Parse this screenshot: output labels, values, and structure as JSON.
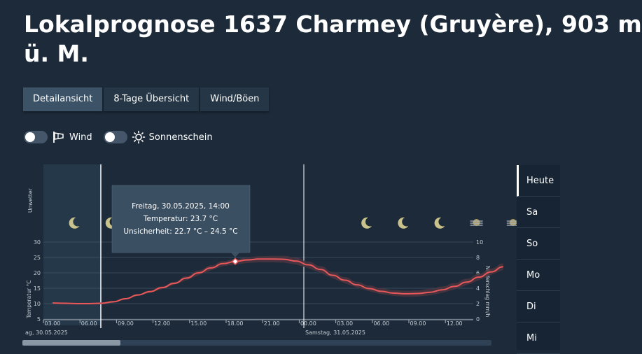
{
  "page": {
    "title_line1": "Lokalprognose 1637 Charmey (Gruyère), 903 m",
    "title_line2": "ü. M."
  },
  "tabs": [
    {
      "label": "Detailansicht",
      "active": true
    },
    {
      "label": "8-Tage Übersicht",
      "active": false
    },
    {
      "label": "Wind/Böen",
      "active": false
    }
  ],
  "toggles": [
    {
      "label": "Wind",
      "icon": "windsock-icon",
      "on": false
    },
    {
      "label": "Sonnenschein",
      "icon": "sun-icon",
      "on": false
    }
  ],
  "chart_data": {
    "type": "line",
    "ylabel": "Temperatur °C",
    "y2label": "Niederschlag mm/h",
    "warning_label": "Unwetter",
    "ylim": [
      5,
      30
    ],
    "y_ticks": [
      5,
      10,
      15,
      20,
      25,
      30
    ],
    "y2lim": [
      0,
      10
    ],
    "y2_ticks": [
      0,
      2,
      4,
      6,
      8,
      10
    ],
    "x_ticks": [
      "03.00",
      "06.00",
      "09.00",
      "12.00",
      "15.00",
      "18.00",
      "21.00",
      "00.00",
      "03.00",
      "06.00",
      "09.00",
      "12.00"
    ],
    "day_labels": [
      "ag, 30.05.2025",
      "Samstag, 31.05.2025"
    ],
    "series": [
      {
        "x_hours": [
          0,
          1,
          2,
          3,
          4,
          5,
          6,
          7,
          8,
          9,
          10,
          11,
          12,
          13,
          14,
          15,
          16,
          17,
          18,
          19,
          20,
          21,
          22,
          23,
          24,
          25,
          26,
          27,
          28,
          29,
          30,
          31,
          32,
          33,
          34,
          35,
          36,
          37
        ],
        "values": [
          10.2,
          10.1,
          10.0,
          10.0,
          10.1,
          10.6,
          11.6,
          12.8,
          13.9,
          15.2,
          16.6,
          18.3,
          20.0,
          21.6,
          23.0,
          23.7,
          24.2,
          24.5,
          24.5,
          24.4,
          23.8,
          22.6,
          21.1,
          19.2,
          17.6,
          16.1,
          14.9,
          14.0,
          13.4,
          13.2,
          13.3,
          13.7,
          14.5,
          15.6,
          17.0,
          18.6,
          20.3,
          22.0
        ],
        "uncertainty_low": [
          9.9,
          9.8,
          9.7,
          9.7,
          9.8,
          10.3,
          11.3,
          12.5,
          13.5,
          14.7,
          16.1,
          17.6,
          19.2,
          20.8,
          22.2,
          22.7,
          23.2,
          23.4,
          23.4,
          23.3,
          22.7,
          21.5,
          20.0,
          18.2,
          16.6,
          15.2,
          14.0,
          13.1,
          12.5,
          12.2,
          12.3,
          12.7,
          13.5,
          14.6,
          16.0,
          17.6,
          19.3,
          21.0
        ],
        "uncertainty_high": [
          10.5,
          10.4,
          10.3,
          10.3,
          10.4,
          10.9,
          11.9,
          13.1,
          14.3,
          15.7,
          17.1,
          19.0,
          20.8,
          22.4,
          23.8,
          24.5,
          25.0,
          25.4,
          25.5,
          25.5,
          24.9,
          23.7,
          22.2,
          20.3,
          18.6,
          17.1,
          15.9,
          15.0,
          14.4,
          14.2,
          14.3,
          14.8,
          15.6,
          16.7,
          18.1,
          19.7,
          21.4,
          23.1
        ]
      }
    ],
    "weather_icons": [
      {
        "hour": 1,
        "icon": "moon-icon"
      },
      {
        "hour": 4,
        "icon": "moon-icon"
      },
      {
        "hour": 7,
        "icon": "sun-icon"
      },
      {
        "hour": 25,
        "icon": "moon-icon"
      },
      {
        "hour": 28,
        "icon": "moon-icon"
      },
      {
        "hour": 31,
        "icon": "moon-icon"
      },
      {
        "hour": 34,
        "icon": "fog-icon"
      },
      {
        "hour": 37,
        "icon": "fog-icon"
      },
      {
        "hour": 40,
        "icon": "fog-icon"
      }
    ],
    "tooltip": {
      "hour": 15,
      "line1": "Freitag, 30.05.2025, 14:00",
      "line2": "Temperatur: 23.7 °C",
      "line3": "Unsicherheit: 22.7 °C – 24.5 °C"
    }
  },
  "sidebar": {
    "items": [
      {
        "label": "Heute",
        "active": true
      },
      {
        "label": "Sa",
        "active": false
      },
      {
        "label": "So",
        "active": false
      },
      {
        "label": "Mo",
        "active": false
      },
      {
        "label": "Di",
        "active": false
      },
      {
        "label": "Mi",
        "active": false
      }
    ]
  },
  "colors": {
    "background": "#1c2a39",
    "line": "#e8585a",
    "band": "#4a3540",
    "past_shade": "#25384a"
  }
}
